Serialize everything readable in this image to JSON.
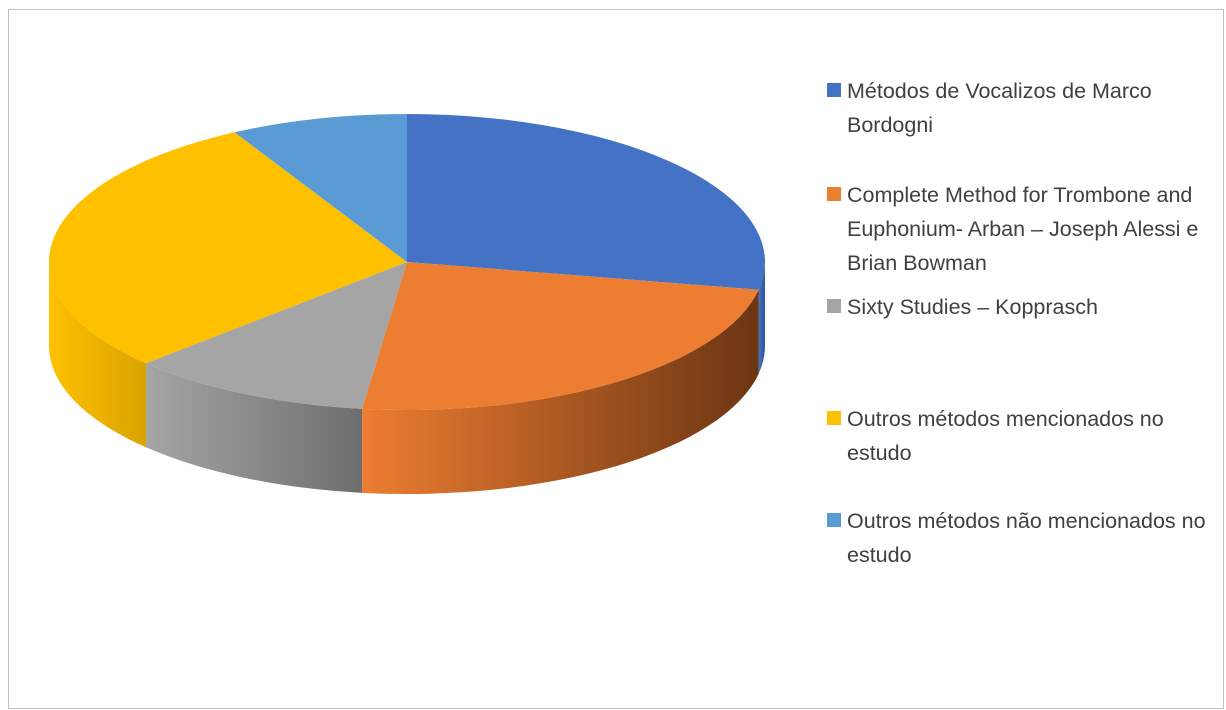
{
  "chart_data": {
    "type": "pie",
    "three_d": true,
    "title": "",
    "categories": [
      "Métodos de Vocalizos de Marco Bordogni",
      "Complete Method for Trombone and Euphonium- Arban – Joseph Alessi e Brian Bowman",
      "Sixty Studies – Kopprasch",
      "Outros métodos mencionados no estudo",
      "Outros métodos não mencionados no estudo"
    ],
    "values": [
      28,
      24,
      11,
      29,
      8
    ],
    "value_unit": "percent (estimated)",
    "colors": [
      "#4472C4",
      "#ED7D31",
      "#A5A5A5",
      "#FFC000",
      "#5B9BD5"
    ],
    "side_colors": [
      "#2F5597",
      "#6B3513",
      "#6E6E6E",
      "#D9A400",
      "#3E7CB8"
    ],
    "start_angle_deg": 0,
    "direction": "clockwise",
    "legend_position": "right"
  }
}
